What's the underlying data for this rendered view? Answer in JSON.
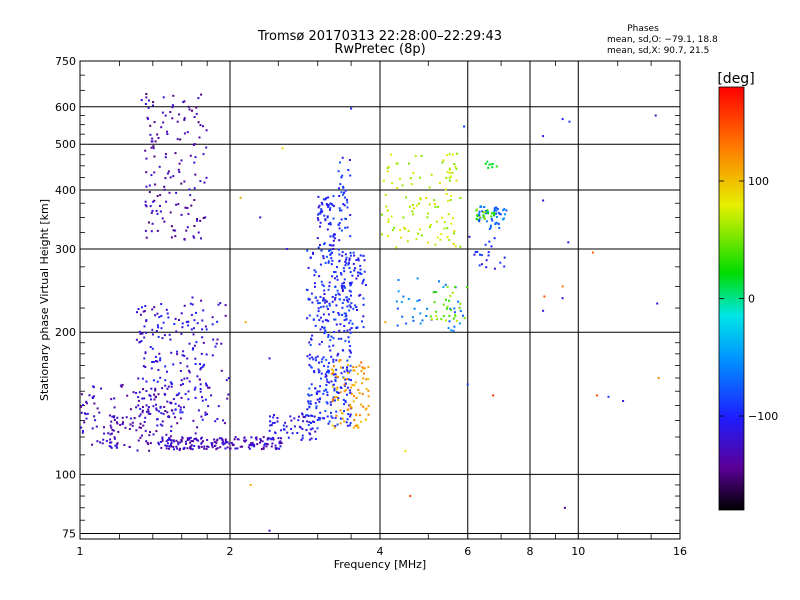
{
  "chart_data": {
    "type": "scatter",
    "title": "Tromsø 20170313 22:28:00–22:29:43",
    "subtitle": "RwPretec (8p)",
    "xlabel": "Frequency [MHz]",
    "ylabel": "Stationary phase Virtual Height [km]",
    "x_scale": "log",
    "y_scale": "log",
    "xlim": [
      1,
      16
    ],
    "ylim": [
      73,
      750
    ],
    "x_ticks": [
      1,
      2,
      4,
      6,
      8,
      10,
      16
    ],
    "x_tick_labels": [
      "1",
      "2",
      "4",
      "6",
      "8",
      "10",
      "16"
    ],
    "y_ticks": [
      75,
      100,
      200,
      300,
      400,
      500,
      600,
      750
    ],
    "y_tick_labels": [
      "75",
      "100",
      "200",
      "300",
      "400",
      "500",
      "600",
      "750"
    ],
    "grid": true,
    "stats": {
      "heading": "Phases",
      "line_o": "mean, sd,O: −79.1, 18.8",
      "line_x": "mean, sd,X:  90.7, 21.5"
    },
    "colorbar": {
      "label": "[deg]",
      "min": -180,
      "max": 180,
      "ticks": [
        100,
        0,
        -100
      ],
      "tick_labels": [
        "100",
        "0",
        "−100"
      ]
    },
    "clusters": [
      {
        "x0": 1.0,
        "x1": 1.6,
        "h0": 112,
        "h1": 155,
        "phase": -130,
        "n": 180
      },
      {
        "x0": 1.3,
        "x1": 1.8,
        "h0": 130,
        "h1": 230,
        "phase": -115,
        "n": 160
      },
      {
        "x0": 1.6,
        "x1": 2.0,
        "h0": 122,
        "h1": 240,
        "phase": -120,
        "n": 60
      },
      {
        "x0": 1.45,
        "x1": 2.55,
        "h0": 113,
        "h1": 120,
        "phase": -125,
        "n": 170
      },
      {
        "x0": 2.4,
        "x1": 3.0,
        "h0": 118,
        "h1": 135,
        "phase": -110,
        "n": 60
      },
      {
        "x0": 2.85,
        "x1": 3.5,
        "h0": 125,
        "h1": 300,
        "phase": -95,
        "n": 340
      },
      {
        "x0": 3.3,
        "x1": 3.75,
        "h0": 200,
        "h1": 300,
        "phase": -100,
        "n": 80
      },
      {
        "x0": 3.2,
        "x1": 3.8,
        "h0": 125,
        "h1": 175,
        "phase": 115,
        "n": 90
      },
      {
        "x0": 3.0,
        "x1": 3.25,
        "h0": 300,
        "h1": 390,
        "phase": -100,
        "n": 60
      },
      {
        "x0": 3.3,
        "x1": 3.5,
        "h0": 310,
        "h1": 470,
        "phase": -95,
        "n": 40
      },
      {
        "x0": 1.35,
        "x1": 1.8,
        "h0": 310,
        "h1": 640,
        "phase": -135,
        "n": 150
      },
      {
        "x0": 4.0,
        "x1": 5.8,
        "h0": 300,
        "h1": 480,
        "phase": 70,
        "n": 110
      },
      {
        "x0": 4.3,
        "x1": 5.9,
        "h0": 200,
        "h1": 260,
        "phase": -60,
        "n": 40
      },
      {
        "x0": 5.0,
        "x1": 6.0,
        "h0": 210,
        "h1": 250,
        "phase": 50,
        "n": 30
      },
      {
        "x0": 6.3,
        "x1": 7.2,
        "h0": 330,
        "h1": 370,
        "phase": -70,
        "n": 50
      },
      {
        "x0": 6.2,
        "x1": 6.8,
        "h0": 345,
        "h1": 365,
        "phase": 40,
        "n": 20
      },
      {
        "x0": 6.5,
        "x1": 6.9,
        "h0": 440,
        "h1": 460,
        "phase": 20,
        "n": 8
      },
      {
        "x0": 6.0,
        "x1": 7.2,
        "h0": 270,
        "h1": 320,
        "phase": -100,
        "n": 20
      }
    ],
    "scatter_points": [
      {
        "x": 1.33,
        "y": 620,
        "phase": -110
      },
      {
        "x": 3.5,
        "y": 595,
        "phase": -100
      },
      {
        "x": 5.9,
        "y": 545,
        "phase": -90
      },
      {
        "x": 8.5,
        "y": 520,
        "phase": -110
      },
      {
        "x": 9.6,
        "y": 558,
        "phase": -90
      },
      {
        "x": 9.3,
        "y": 565,
        "phase": -100
      },
      {
        "x": 14.3,
        "y": 575,
        "phase": -130
      },
      {
        "x": 2.1,
        "y": 385,
        "phase": 110
      },
      {
        "x": 2.3,
        "y": 350,
        "phase": -120
      },
      {
        "x": 2.55,
        "y": 490,
        "phase": 90
      },
      {
        "x": 2.6,
        "y": 300,
        "phase": -110
      },
      {
        "x": 8.5,
        "y": 380,
        "phase": -120
      },
      {
        "x": 9.55,
        "y": 310,
        "phase": -100
      },
      {
        "x": 10.7,
        "y": 295,
        "phase": 140
      },
      {
        "x": 8.55,
        "y": 238,
        "phase": 150
      },
      {
        "x": 9.3,
        "y": 250,
        "phase": 130
      },
      {
        "x": 8.5,
        "y": 222,
        "phase": -110
      },
      {
        "x": 9.3,
        "y": 236,
        "phase": -110
      },
      {
        "x": 14.4,
        "y": 230,
        "phase": -120
      },
      {
        "x": 2.4,
        "y": 176,
        "phase": -110
      },
      {
        "x": 6.75,
        "y": 147,
        "phase": 160
      },
      {
        "x": 6.0,
        "y": 155,
        "phase": -90
      },
      {
        "x": 4.5,
        "y": 112,
        "phase": 90
      },
      {
        "x": 4.6,
        "y": 90,
        "phase": 150
      },
      {
        "x": 10.9,
        "y": 147,
        "phase": 150
      },
      {
        "x": 11.5,
        "y": 146,
        "phase": -90
      },
      {
        "x": 12.3,
        "y": 143,
        "phase": -110
      },
      {
        "x": 14.5,
        "y": 160,
        "phase": 120
      },
      {
        "x": 2.2,
        "y": 95,
        "phase": 110
      },
      {
        "x": 2.4,
        "y": 76,
        "phase": -130
      },
      {
        "x": 9.4,
        "y": 85,
        "phase": -140
      },
      {
        "x": 2.15,
        "y": 210,
        "phase": 110
      },
      {
        "x": 4.1,
        "y": 210,
        "phase": 110
      }
    ]
  }
}
